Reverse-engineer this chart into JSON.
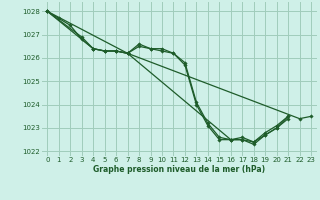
{
  "background_color": "#cff0e8",
  "grid_color": "#a0ccbb",
  "line_color": "#1e5c2a",
  "marker_color": "#1e5c2a",
  "xlabel": "Graphe pression niveau de la mer (hPa)",
  "xlim": [
    -0.5,
    23.5
  ],
  "ylim": [
    1021.8,
    1028.4
  ],
  "yticks": [
    1022,
    1023,
    1024,
    1025,
    1026,
    1027,
    1028
  ],
  "xticks": [
    0,
    1,
    2,
    3,
    4,
    5,
    6,
    7,
    8,
    9,
    10,
    11,
    12,
    13,
    14,
    15,
    16,
    17,
    18,
    19,
    20,
    21,
    22,
    23
  ],
  "series": [
    {
      "x": [
        0,
        1,
        2,
        3,
        4,
        5,
        6,
        7,
        8,
        9,
        10,
        11,
        12,
        13,
        14,
        15,
        16,
        17,
        18,
        19,
        20,
        21
      ],
      "y": [
        1028.0,
        1027.7,
        1027.4,
        1026.8,
        1026.4,
        1026.3,
        1026.3,
        1026.2,
        1026.5,
        1026.4,
        1026.4,
        1026.2,
        1025.7,
        1024.0,
        1023.1,
        1022.5,
        1022.5,
        1022.5,
        1022.3,
        1022.7,
        1023.0,
        1023.4
      ]
    },
    {
      "x": [
        0,
        3,
        4,
        5,
        6,
        7,
        8,
        9,
        10,
        11,
        12,
        13,
        14,
        15,
        16,
        17,
        18,
        19,
        20,
        21
      ],
      "y": [
        1028.0,
        1026.9,
        1026.4,
        1026.3,
        1026.3,
        1026.2,
        1026.6,
        1026.4,
        1026.3,
        1026.2,
        1025.8,
        1024.1,
        1023.2,
        1022.6,
        1022.5,
        1022.6,
        1022.4,
        1022.8,
        1023.1,
        1023.5
      ]
    },
    {
      "x": [
        0,
        4,
        5,
        6,
        7,
        16,
        17,
        18,
        19,
        20,
        21
      ],
      "y": [
        1028.0,
        1026.4,
        1026.3,
        1026.3,
        1026.2,
        1022.5,
        1022.5,
        1022.4,
        1022.7,
        1023.0,
        1023.5
      ]
    },
    {
      "x": [
        0,
        7,
        22,
        23
      ],
      "y": [
        1028.0,
        1026.2,
        1023.4,
        1023.5
      ]
    }
  ]
}
